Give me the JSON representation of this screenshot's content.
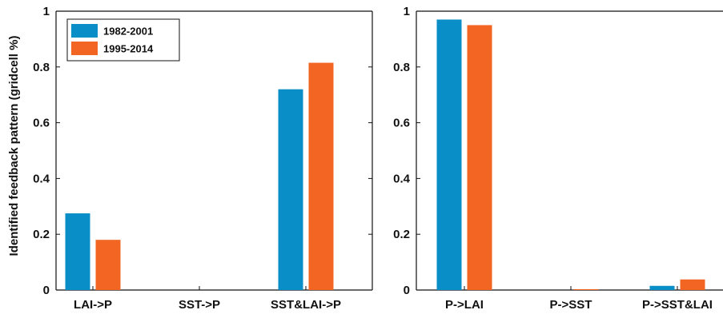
{
  "chart_data": [
    {
      "type": "bar",
      "categories": [
        "LAI->P",
        "SST->P",
        "SST&LAI->P"
      ],
      "series": [
        {
          "name": "1982-2001",
          "color": "#0a8ec7",
          "values": [
            0.275,
            0.0,
            0.72
          ]
        },
        {
          "name": "1995-2014",
          "color": "#f26522",
          "values": [
            0.18,
            0.0,
            0.815
          ]
        }
      ],
      "ylabel": "Identified feedback pattern (gridcell %)",
      "xlabel": "",
      "ylim": [
        0,
        1
      ],
      "yticks": [
        "0",
        "0.2",
        "0.4",
        "0.6",
        "0.8",
        "1"
      ],
      "legend": "top-left",
      "grid": false
    },
    {
      "type": "bar",
      "categories": [
        "P->LAI",
        "P->SST",
        "P->SST&LAI"
      ],
      "series": [
        {
          "name": "1982-2001",
          "color": "#0a8ec7",
          "values": [
            0.97,
            0.0,
            0.015
          ]
        },
        {
          "name": "1995-2014",
          "color": "#f26522",
          "values": [
            0.95,
            0.003,
            0.038
          ]
        }
      ],
      "ylabel": "",
      "xlabel": "",
      "ylim": [
        0,
        1
      ],
      "yticks": [
        "0",
        "0.2",
        "0.4",
        "0.6",
        "0.8",
        "1"
      ],
      "legend": "none",
      "grid": false
    }
  ]
}
